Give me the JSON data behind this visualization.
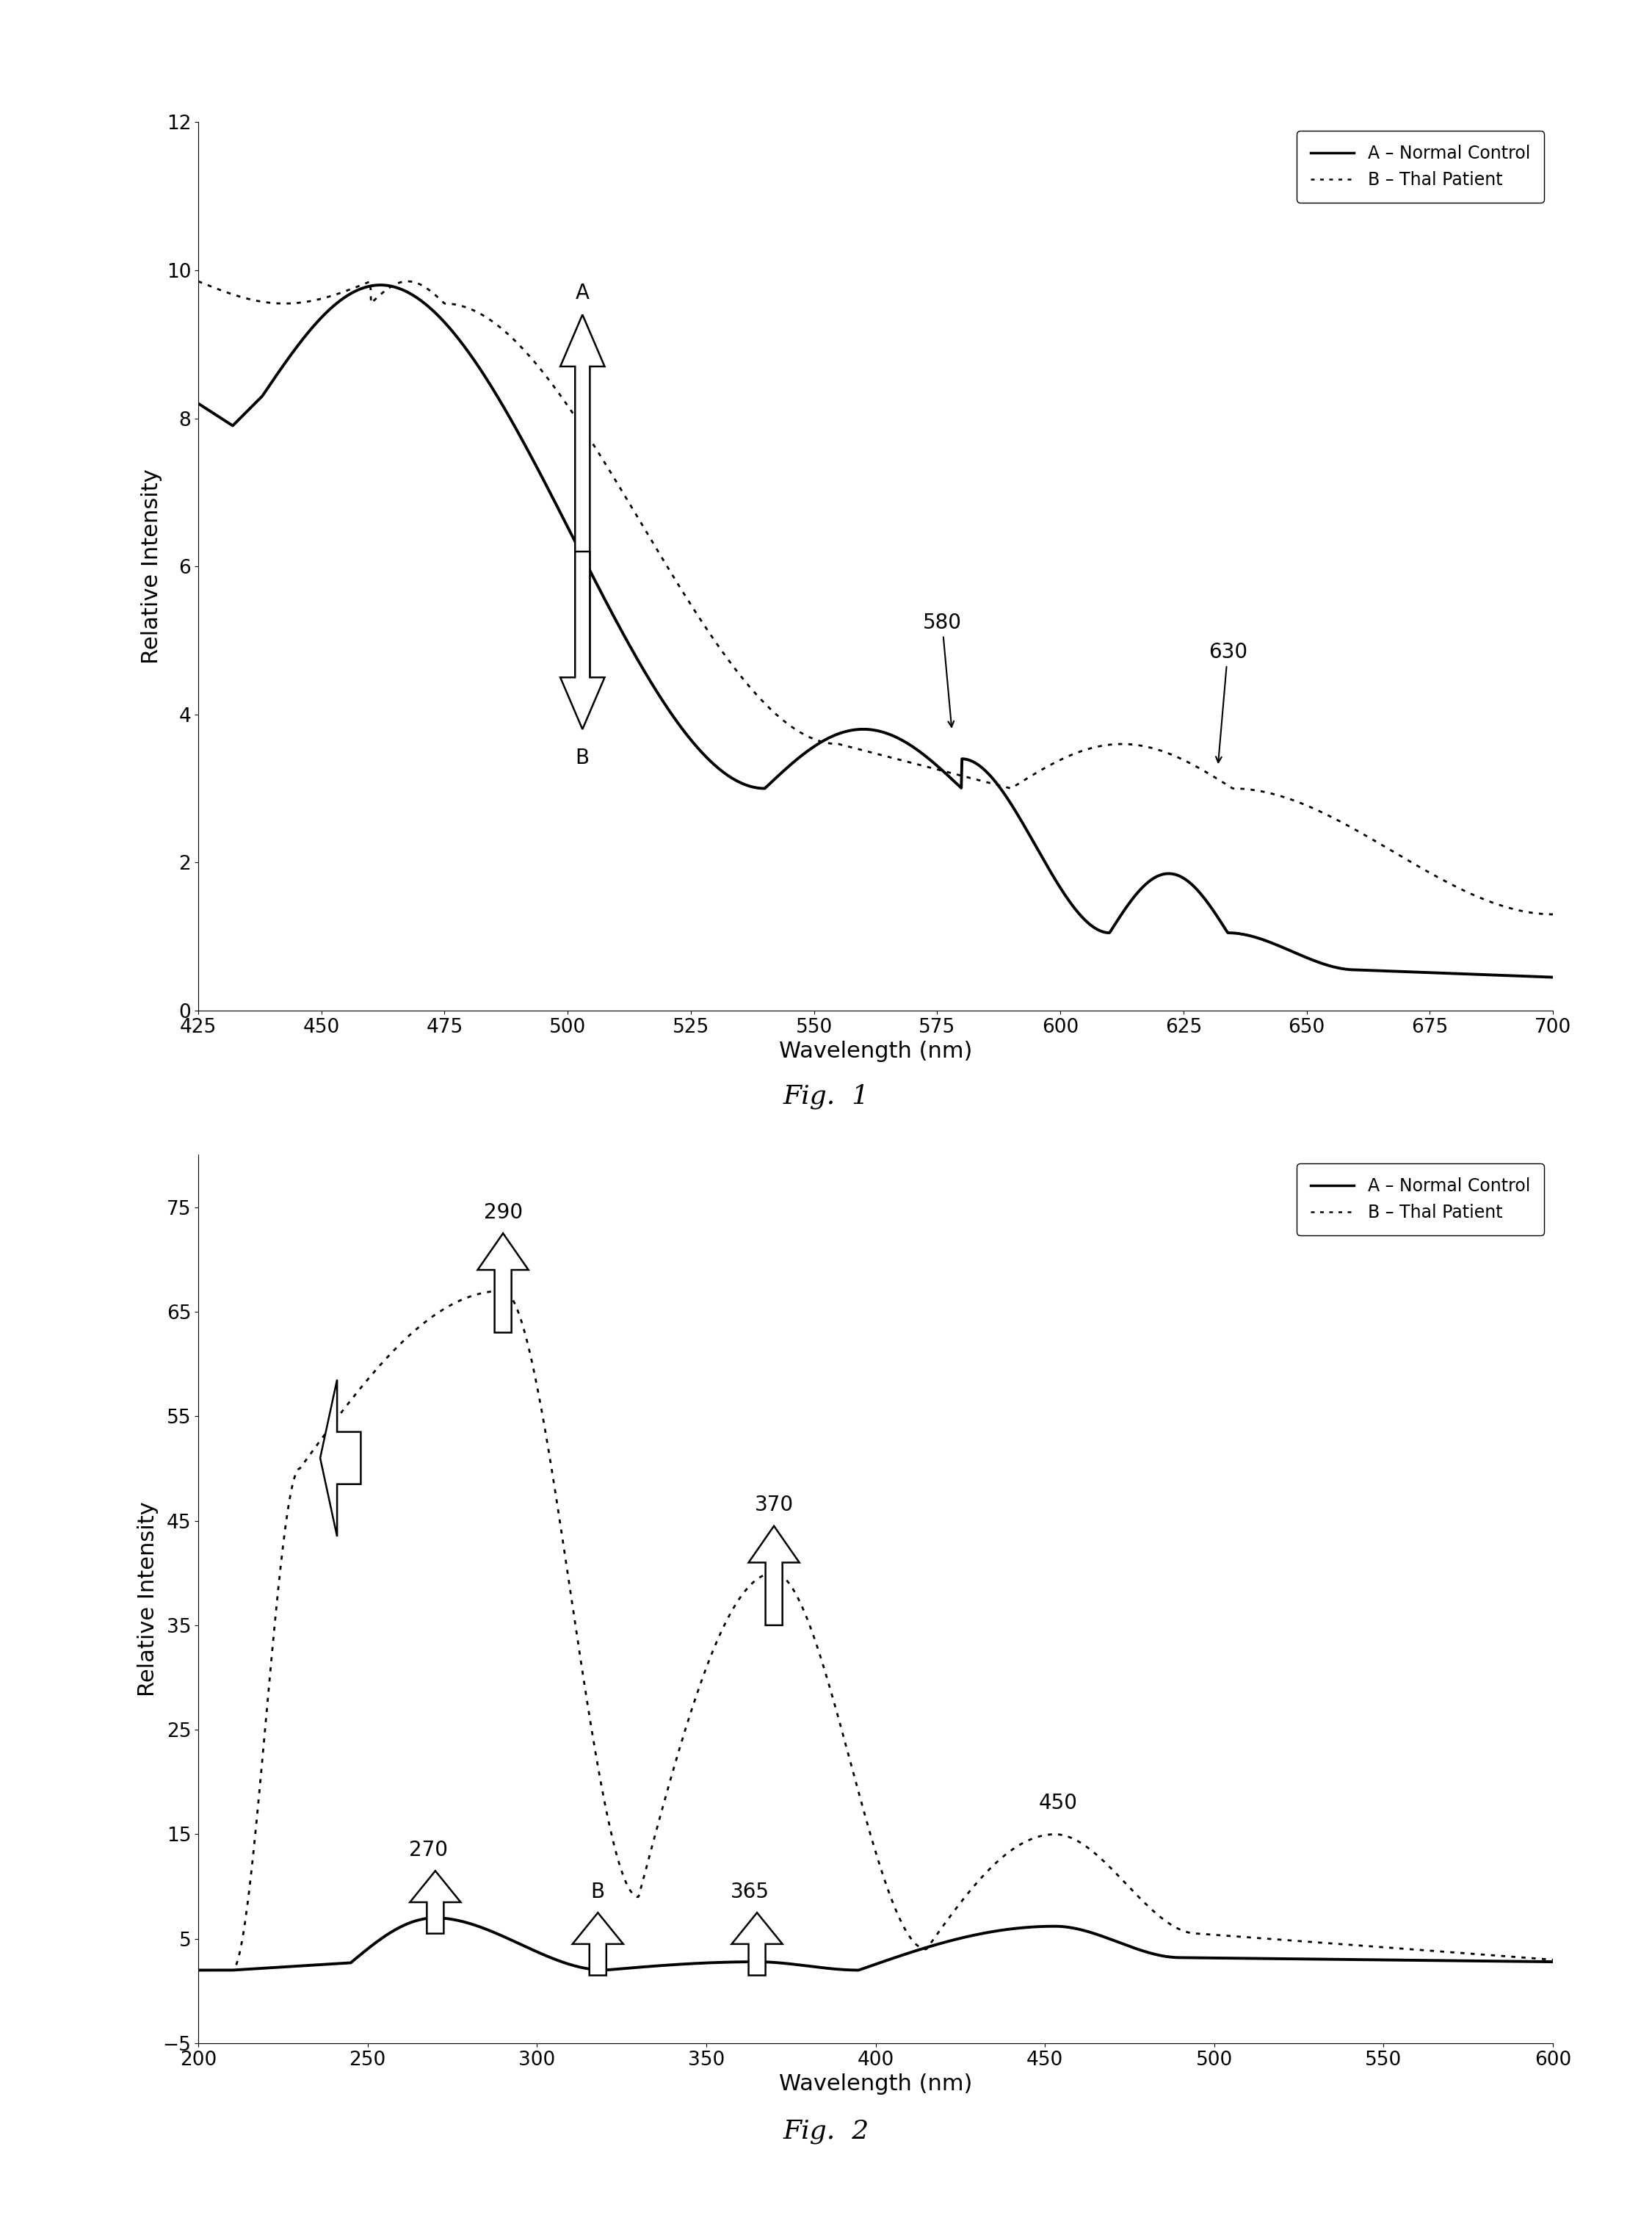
{
  "fig1": {
    "xlabel": "Wavelength (nm)",
    "ylabel": "Relative Intensity",
    "xlim": [
      425,
      700
    ],
    "ylim": [
      0,
      12
    ],
    "yticks": [
      0,
      2,
      4,
      6,
      8,
      10,
      12
    ],
    "xticks": [
      425,
      450,
      475,
      500,
      525,
      550,
      575,
      600,
      625,
      650,
      675,
      700
    ],
    "legend_text": [
      "A – Normal Control",
      "B – Thal Patient"
    ],
    "fig_label": "Fig.  1"
  },
  "fig2": {
    "xlabel": "Wavelength (nm)",
    "ylabel": "Relative Intensity",
    "xlim": [
      200,
      600
    ],
    "ylim": [
      -5,
      80
    ],
    "yticks": [
      -5,
      5,
      15,
      25,
      35,
      45,
      55,
      65,
      75
    ],
    "xticks": [
      200,
      250,
      300,
      350,
      400,
      450,
      500,
      550,
      600
    ],
    "legend_text": [
      "A – Normal Control",
      "B – Thal Patient"
    ],
    "fig_label": "Fig.  2"
  }
}
